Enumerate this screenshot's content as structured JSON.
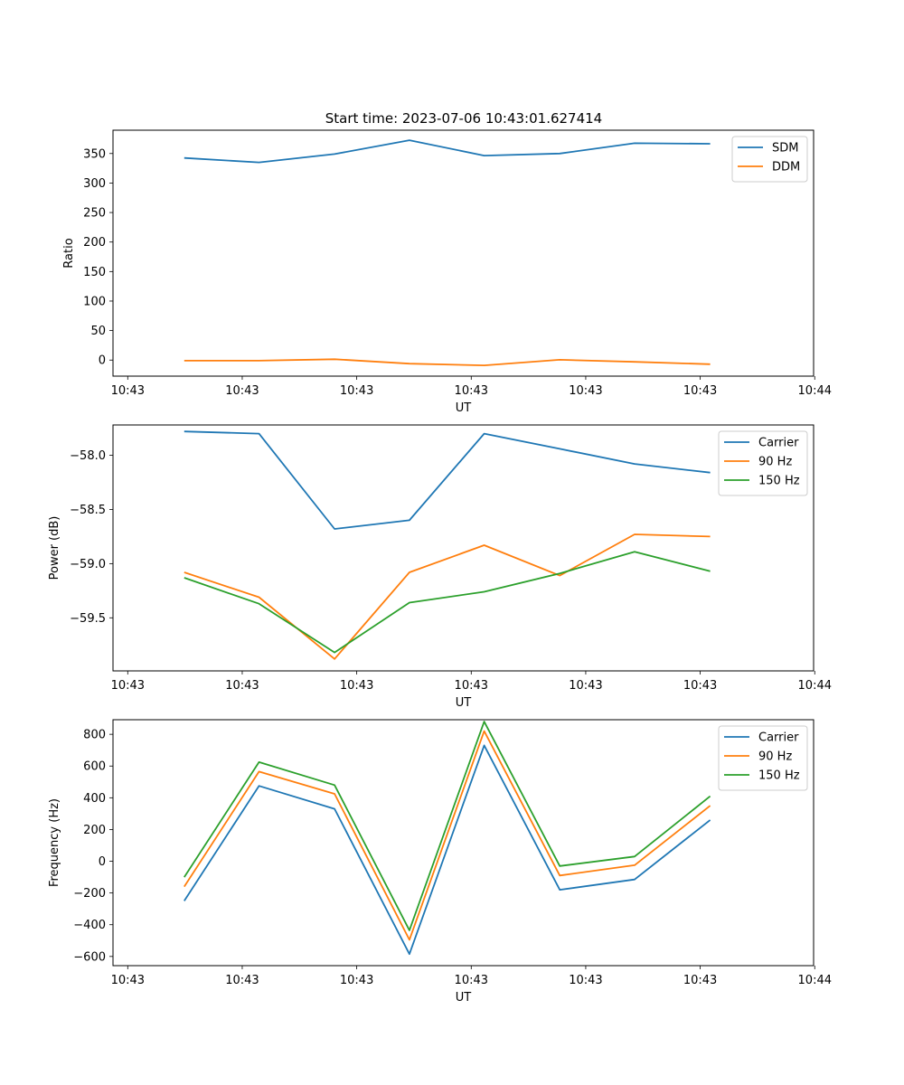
{
  "figure_title": "Start time: 2023-07-06 10:43:01.627414",
  "chart_data": [
    {
      "type": "line",
      "title": "Start time: 2023-07-06 10:43:01.627414",
      "xlabel": "UT",
      "ylabel": "Ratio",
      "xlim": [
        -0.193,
        8.985
      ],
      "ylim": [
        -27.2,
        389.5
      ],
      "xticks": [
        0,
        1.5,
        3,
        4.5,
        6,
        7.5,
        9
      ],
      "xtick_labels": [
        "10:43",
        "10:43",
        "10:43",
        "10:43",
        "10:43",
        "10:43",
        "10:44"
      ],
      "yticks": [
        0,
        50,
        100,
        150,
        200,
        250,
        300,
        350
      ],
      "ytick_labels": [
        "0",
        "50",
        "100",
        "150",
        "200",
        "250",
        "300",
        "350"
      ],
      "legend_position": "upper right",
      "x": [
        0.74,
        1.72,
        2.71,
        3.69,
        4.67,
        5.66,
        6.64,
        7.63
      ],
      "series": [
        {
          "name": "SDM",
          "color": "#1f77b4",
          "values": [
            342.5,
            335.0,
            349.0,
            372.5,
            346.5,
            350.0,
            367.5,
            366.5
          ]
        },
        {
          "name": "DDM",
          "color": "#ff7f0e",
          "values": [
            -1.0,
            -1.0,
            1.5,
            -6.0,
            -9.0,
            0.5,
            -3.0,
            -7.0
          ]
        }
      ]
    },
    {
      "type": "line",
      "title": "",
      "xlabel": "UT",
      "ylabel": "Power (dB)",
      "xlim": [
        -0.193,
        8.985
      ],
      "ylim": [
        -59.99,
        -57.72
      ],
      "xticks": [
        0,
        1.5,
        3,
        4.5,
        6,
        7.5,
        9
      ],
      "xtick_labels": [
        "10:43",
        "10:43",
        "10:43",
        "10:43",
        "10:43",
        "10:43",
        "10:44"
      ],
      "yticks": [
        -59.5,
        -59.0,
        -58.5,
        -58.0
      ],
      "ytick_labels": [
        "−59.5",
        "−59.0",
        "−58.5",
        "−58.0"
      ],
      "legend_position": "upper right",
      "x": [
        0.74,
        1.72,
        2.71,
        3.69,
        4.67,
        5.66,
        6.64,
        7.63
      ],
      "series": [
        {
          "name": "Carrier",
          "color": "#1f77b4",
          "values": [
            -57.78,
            -57.8,
            -58.68,
            -58.6,
            -57.8,
            -57.94,
            -58.08,
            -58.16
          ]
        },
        {
          "name": "90 Hz",
          "color": "#ff7f0e",
          "values": [
            -59.08,
            -59.31,
            -59.88,
            -59.08,
            -58.83,
            -59.11,
            -58.73,
            -58.75
          ]
        },
        {
          "name": "150 Hz",
          "color": "#2ca02c",
          "values": [
            -59.13,
            -59.37,
            -59.82,
            -59.36,
            -59.26,
            -59.09,
            -58.89,
            -59.07
          ]
        }
      ]
    },
    {
      "type": "line",
      "title": "",
      "xlabel": "UT",
      "ylabel": "Frequency (Hz)",
      "xlim": [
        -0.193,
        8.985
      ],
      "ylim": [
        -658,
        892
      ],
      "xticks": [
        0,
        1.5,
        3,
        4.5,
        6,
        7.5,
        9
      ],
      "xtick_labels": [
        "10:43",
        "10:43",
        "10:43",
        "10:43",
        "10:43",
        "10:43",
        "10:44"
      ],
      "yticks": [
        -600,
        -400,
        -200,
        0,
        200,
        400,
        600,
        800
      ],
      "ytick_labels": [
        "−600",
        "−400",
        "−200",
        "0",
        "200",
        "400",
        "600",
        "800"
      ],
      "legend_position": "upper right",
      "x": [
        0.74,
        1.72,
        2.71,
        3.69,
        4.67,
        5.66,
        6.64,
        7.63
      ],
      "series": [
        {
          "name": "Carrier",
          "color": "#1f77b4",
          "values": [
            -250,
            475,
            330,
            -585,
            730,
            -180,
            -115,
            260
          ]
        },
        {
          "name": "90 Hz",
          "color": "#ff7f0e",
          "values": [
            -160,
            565,
            425,
            -495,
            820,
            -90,
            -25,
            350
          ]
        },
        {
          "name": "150 Hz",
          "color": "#2ca02c",
          "values": [
            -100,
            625,
            480,
            -435,
            880,
            -30,
            30,
            410
          ]
        }
      ]
    }
  ]
}
